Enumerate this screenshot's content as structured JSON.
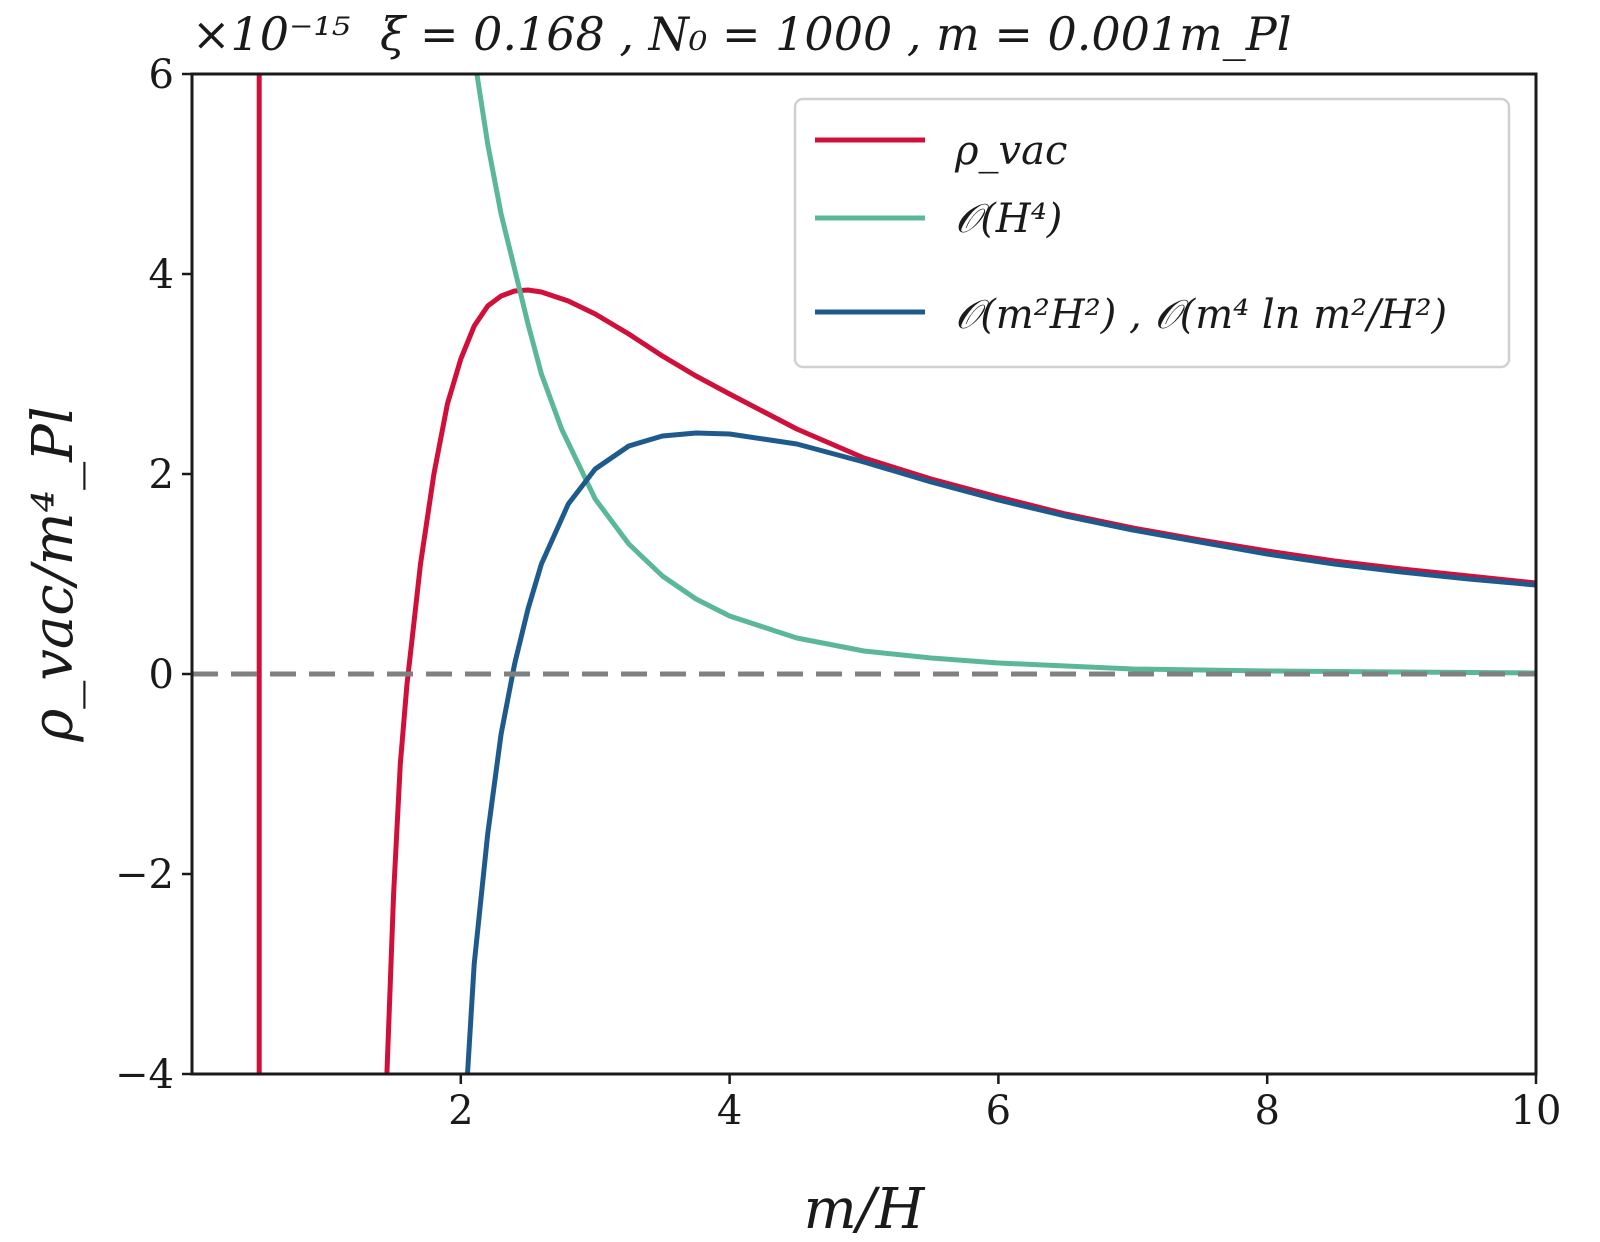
{
  "chart_data": {
    "type": "line",
    "title": "ξ = 0.168 , N₀ = 1000 ,  m = 0.001m_Pl",
    "offset_label": "×10⁻¹⁵",
    "xlabel": "m/H",
    "ylabel": "ρ_vac/m⁴_Pl",
    "xlim": [
      0,
      10
    ],
    "ylim": [
      -4,
      6
    ],
    "xticks": [
      2,
      4,
      6,
      8,
      10
    ],
    "xtick_labels": [
      "2",
      "4",
      "6",
      "8",
      "10"
    ],
    "yticks": [
      -4,
      -2,
      0,
      2,
      4,
      6
    ],
    "ytick_labels": [
      "−4",
      "−2",
      "0",
      "2",
      "4",
      "6"
    ],
    "grid": false,
    "legend_position": "top-right",
    "reference_line": {
      "y": 0,
      "style": "dashed",
      "color": "#808080"
    },
    "series": [
      {
        "name": "ρ_vac",
        "color": "#d0103a",
        "segments": [
          {
            "x": [
              0.5,
              0.5
            ],
            "y": [
              -4,
              6
            ]
          },
          {
            "x": [
              1.45,
              1.5,
              1.55,
              1.6,
              1.65,
              1.7,
              1.8,
              1.9,
              2.0,
              2.1,
              2.2,
              2.3,
              2.4,
              2.5,
              2.6,
              2.8,
              3.0,
              3.25,
              3.5,
              3.75,
              4.0,
              4.5,
              5.0,
              5.5,
              6.0,
              6.5,
              7.0,
              7.5,
              8.0,
              8.5,
              9.0,
              9.5,
              10.0
            ],
            "y": [
              -4.0,
              -2.2,
              -0.9,
              -0.1,
              0.5,
              1.1,
              2.0,
              2.7,
              3.15,
              3.48,
              3.68,
              3.78,
              3.83,
              3.84,
              3.82,
              3.73,
              3.6,
              3.4,
              3.18,
              2.98,
              2.8,
              2.45,
              2.16,
              1.95,
              1.77,
              1.6,
              1.46,
              1.34,
              1.23,
              1.13,
              1.05,
              0.98,
              0.91
            ]
          }
        ]
      },
      {
        "name": "𝒪(H⁴)",
        "color": "#5ab896",
        "segments": [
          {
            "x": [
              2.12,
              2.2,
              2.3,
              2.4,
              2.5,
              2.6,
              2.75,
              3.0,
              3.25,
              3.5,
              3.75,
              4.0,
              4.5,
              5.0,
              5.5,
              6.0,
              7.0,
              8.0,
              9.0,
              10.0
            ],
            "y": [
              6.0,
              5.3,
              4.6,
              4.05,
              3.5,
              3.0,
              2.45,
              1.75,
              1.3,
              0.98,
              0.75,
              0.58,
              0.36,
              0.23,
              0.16,
              0.11,
              0.05,
              0.03,
              0.02,
              0.01
            ]
          }
        ]
      },
      {
        "name": "𝒪(m²H²) , 𝒪(m⁴ ln m²/H²)",
        "color": "#1f5a8c",
        "segments": [
          {
            "x": [
              2.05,
              2.1,
              2.2,
              2.3,
              2.4,
              2.5,
              2.6,
              2.8,
              3.0,
              3.25,
              3.5,
              3.75,
              4.0,
              4.5,
              5.0,
              5.5,
              6.0,
              6.5,
              7.0,
              7.5,
              8.0,
              8.5,
              9.0,
              9.5,
              10.0
            ],
            "y": [
              -4.0,
              -2.9,
              -1.6,
              -0.6,
              0.1,
              0.65,
              1.1,
              1.7,
              2.05,
              2.28,
              2.38,
              2.41,
              2.4,
              2.3,
              2.12,
              1.92,
              1.74,
              1.58,
              1.44,
              1.32,
              1.2,
              1.1,
              1.02,
              0.95,
              0.89
            ]
          }
        ]
      }
    ]
  }
}
